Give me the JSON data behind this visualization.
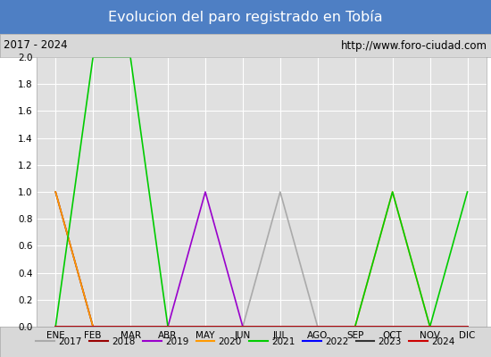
{
  "title": "Evolucion del paro registrado en Tobía",
  "title_bg_color": "#4e7fc4",
  "title_text_color": "white",
  "subtitle_left": "2017 - 2024",
  "subtitle_right": "http://www.foro-ciudad.com",
  "subtitle_bg_color": "#d8d8d8",
  "plot_bg_color": "#e0e0e0",
  "grid_color": "white",
  "months": [
    0,
    1,
    2,
    3,
    4,
    5,
    6,
    7,
    8,
    9,
    10,
    11
  ],
  "month_labels": [
    "ENE",
    "FEB",
    "MAR",
    "ABR",
    "MAY",
    "JUN",
    "JUL",
    "AGO",
    "SEP",
    "OCT",
    "NOV",
    "DIC"
  ],
  "ylim": [
    0.0,
    2.0
  ],
  "yticks": [
    0.0,
    0.2,
    0.4,
    0.6,
    0.8,
    1.0,
    1.2,
    1.4,
    1.6,
    1.8,
    2.0
  ],
  "series": {
    "2017": {
      "color": "#aaaaaa",
      "data": [
        1,
        0,
        0,
        0,
        0,
        0,
        1,
        0,
        0,
        0,
        0,
        0
      ]
    },
    "2018": {
      "color": "#990000",
      "data": [
        1,
        0,
        0,
        0,
        0,
        0,
        0,
        0,
        0,
        0,
        0,
        0
      ]
    },
    "2019": {
      "color": "#9900cc",
      "data": [
        0,
        0,
        0,
        0,
        1,
        0,
        0,
        0,
        0,
        0,
        0,
        0
      ]
    },
    "2020": {
      "color": "#ff9900",
      "data": [
        1,
        0,
        0,
        0,
        0,
        0,
        0,
        0,
        0,
        1,
        0,
        0
      ]
    },
    "2021": {
      "color": "#00cc00",
      "data": [
        0,
        2,
        2,
        0,
        0,
        0,
        0,
        0,
        0,
        1,
        0,
        1
      ]
    },
    "2022": {
      "color": "#0000ff",
      "data": [
        0,
        0,
        0,
        0,
        0,
        0,
        0,
        0,
        0,
        0,
        0,
        0
      ]
    },
    "2023": {
      "color": "#333333",
      "data": [
        0,
        0,
        0,
        0,
        0,
        0,
        0,
        0,
        0,
        0,
        0,
        0
      ]
    },
    "2024": {
      "color": "#cc0000",
      "data": [
        0,
        0,
        0,
        0,
        0,
        0,
        0,
        0,
        0,
        0,
        0,
        0
      ]
    }
  },
  "legend_order": [
    "2017",
    "2018",
    "2019",
    "2020",
    "2021",
    "2022",
    "2023",
    "2024"
  ],
  "figwidth": 5.5,
  "figheight": 4.0,
  "dpi": 100
}
